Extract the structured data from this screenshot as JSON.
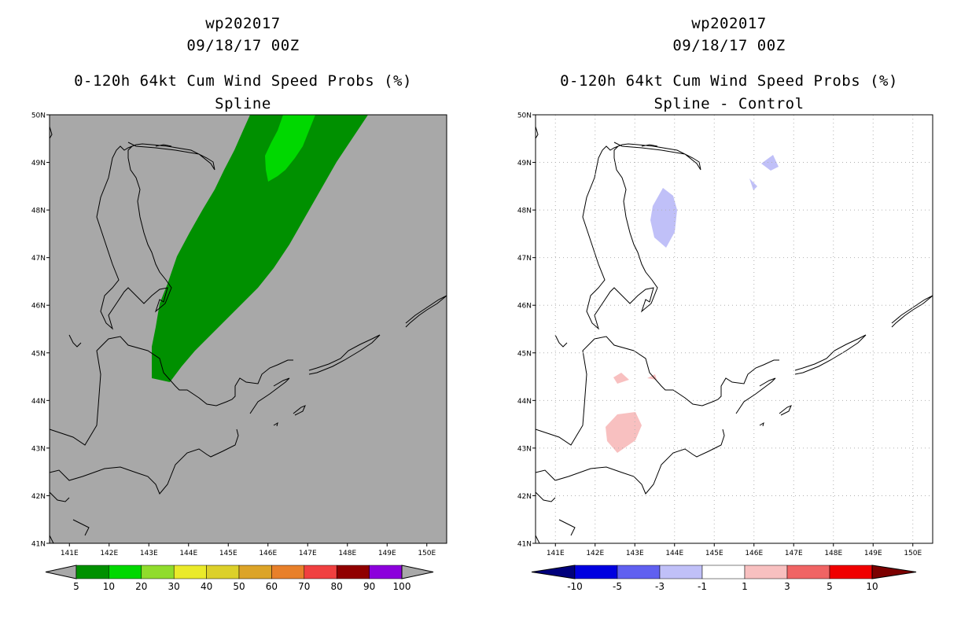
{
  "left_panel": {
    "title_line1": "wp202017",
    "title_line2": "09/18/17 00Z",
    "title_line3": "0-120h 64kt Cum Wind Speed Probs (%)",
    "title_line4": "Spline",
    "background_color": "#a8a8a8",
    "colorbar": {
      "labels": [
        "5",
        "10",
        "20",
        "30",
        "40",
        "50",
        "60",
        "70",
        "80",
        "90",
        "100"
      ],
      "colors": [
        "#009000",
        "#00d800",
        "#90dc2c",
        "#eaea2a",
        "#dcd02a",
        "#dca428",
        "#e8802a",
        "#f04040",
        "#900000",
        "#8c00dc"
      ],
      "end_color": "#a8a8a8"
    }
  },
  "right_panel": {
    "title_line1": "wp202017",
    "title_line2": "09/18/17 00Z",
    "title_line3": "0-120h 64kt Cum Wind Speed Probs (%)",
    "title_line4": "Spline - Control",
    "background_color": "#ffffff",
    "colorbar": {
      "labels": [
        "-10",
        "-5",
        "-3",
        "-1",
        "1",
        "3",
        "5",
        "10"
      ],
      "colors": [
        "#0000e0",
        "#6060f0",
        "#c0c0f8",
        "#ffffff",
        "#f8c0c0",
        "#f06464",
        "#f00000"
      ],
      "low_end_color": "#00007c",
      "high_end_color": "#7c0000"
    }
  },
  "map": {
    "lat_labels": [
      "41N",
      "42N",
      "43N",
      "44N",
      "45N",
      "46N",
      "47N",
      "48N",
      "49N",
      "50N"
    ],
    "lon_labels": [
      "141E",
      "142E",
      "143E",
      "144E",
      "145E",
      "146E",
      "147E",
      "148E",
      "149E",
      "150E"
    ],
    "lon_range": [
      140.5,
      150.5
    ],
    "lat_range": [
      41,
      50
    ]
  }
}
